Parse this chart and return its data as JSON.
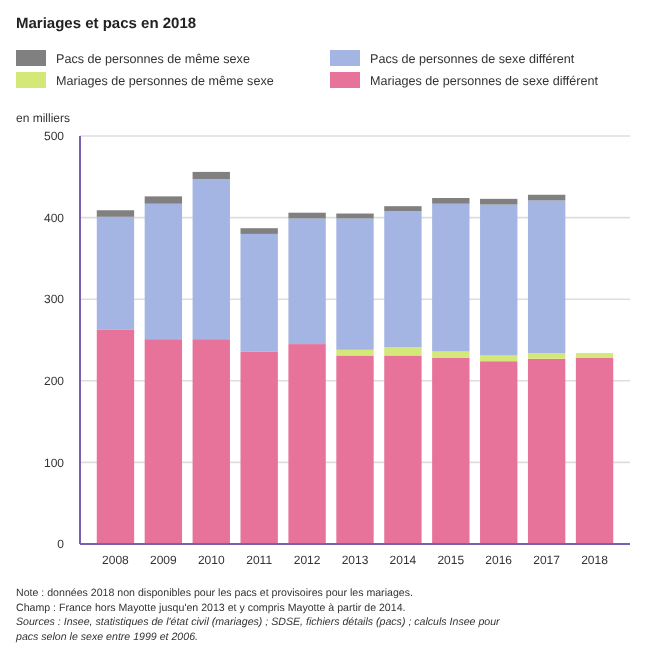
{
  "chart_data": {
    "type": "bar",
    "title": "Mariages et pacs en 2018",
    "ylabel": "en milliers",
    "categories": [
      "2008",
      "2009",
      "2010",
      "2011",
      "2012",
      "2013",
      "2014",
      "2015",
      "2016",
      "2017",
      "2018"
    ],
    "stacked": true,
    "series": [
      {
        "name": "Mariages de personnes de sexe différent",
        "color": "#e8739a",
        "values": [
          263,
          251,
          251,
          236,
          245,
          231,
          231,
          228,
          224,
          227,
          228
        ]
      },
      {
        "name": "Mariages de personnes de même sexe",
        "color": "#d4e87a",
        "values": [
          null,
          null,
          null,
          null,
          null,
          7,
          10,
          8,
          7,
          7,
          6
        ]
      },
      {
        "name": "Pacs de personnes de sexe différent",
        "color": "#a5b5e3",
        "values": [
          138,
          166,
          196,
          144,
          154,
          161,
          167,
          181,
          185,
          187,
          null
        ]
      },
      {
        "name": "Pacs de personnes de même sexe",
        "color": "#808080",
        "values": [
          8,
          9,
          9,
          7,
          7,
          6,
          6,
          7,
          7,
          7,
          null
        ]
      }
    ],
    "ylim": [
      0,
      500
    ],
    "yticks": [
      0,
      100,
      200,
      300,
      400,
      500
    ],
    "grid": "y",
    "legend": "top",
    "annotations": [
      "Note : données 2018 non disponibles pour les pacs et provisoires pour les mariages.",
      "Champ : France hors Mayotte jusqu'en 2013 et y compris Mayotte à partir de 2014.",
      "Sources : Insee, statistiques de l'état civil (mariages) ; SDSE, fichiers détails (pacs) ; calculs Insee pour",
      "pacs selon le sexe entre 1999 et 2006."
    ]
  }
}
